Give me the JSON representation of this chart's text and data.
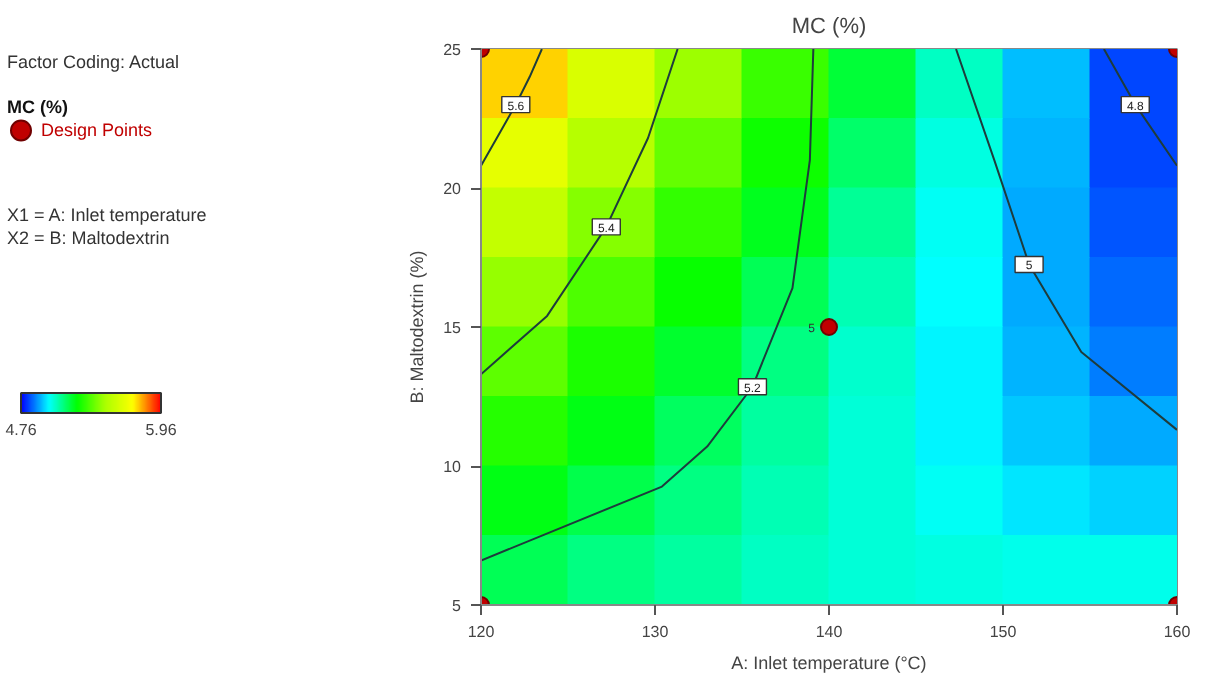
{
  "chart_data": {
    "type": "heatmap",
    "title": "MC (%)",
    "xlabel": "A: Inlet temperature (°C)",
    "ylabel": "B: Maltodextrin (%)",
    "legend_title": "MC (%)",
    "xlim": [
      120,
      160
    ],
    "ylim": [
      5,
      25
    ],
    "xticks": [
      120,
      130,
      140,
      150,
      160
    ],
    "yticks": [
      5,
      10,
      15,
      20,
      25
    ],
    "clim": [
      4.76,
      5.96
    ],
    "cticks": [
      4.76,
      5.96
    ],
    "colors": [
      "#0000ff",
      "#00ffff",
      "#00ff00",
      "#aaff00",
      "#ffff00",
      "#ff0000"
    ],
    "cells": [
      [
        5.76,
        5.61,
        5.46,
        5.32,
        5.19,
        5.06,
        4.94,
        4.83
      ],
      [
        5.65,
        5.51,
        5.38,
        5.26,
        5.14,
        5.03,
        4.93,
        4.83
      ],
      [
        5.55,
        5.43,
        5.31,
        5.21,
        5.1,
        5.01,
        4.92,
        4.84
      ],
      [
        5.45,
        5.35,
        5.25,
        5.16,
        5.07,
        5.0,
        4.92,
        4.86
      ],
      [
        5.37,
        5.28,
        5.2,
        5.12,
        5.05,
        4.99,
        4.93,
        4.88
      ],
      [
        5.29,
        5.22,
        5.15,
        5.09,
        5.04,
        4.99,
        4.95,
        4.92
      ],
      [
        5.22,
        5.17,
        5.12,
        5.07,
        5.04,
        5.01,
        4.98,
        4.96
      ],
      [
        5.16,
        5.12,
        5.09,
        5.06,
        5.04,
        5.03,
        5.02,
        5.02
      ]
    ],
    "series": [
      {
        "type": "line",
        "name": "5.6",
        "color": "#1e3c3c",
        "x": [
          123.5,
          122.8,
          122.0,
          121.0,
          120.0
        ],
        "values": [
          25,
          24,
          23,
          21.9,
          20.8
        ]
      },
      {
        "type": "line",
        "name": "5.4",
        "color": "#1e3c3c",
        "x": [
          131.3,
          129.6,
          127.2,
          123.8,
          120.0
        ],
        "values": [
          25,
          21.8,
          18.6,
          15.4,
          13.3
        ]
      },
      {
        "type": "line",
        "name": "5.2",
        "color": "#1e3c3c",
        "x": [
          139.1,
          138.9,
          137.9,
          135.6,
          133.0,
          130.4,
          120.0
        ],
        "values": [
          25,
          21,
          16.4,
          12.85,
          10.7,
          9.26,
          6.6
        ]
      },
      {
        "type": "line",
        "name": "5",
        "color": "#1e3c3c",
        "x": [
          147.3,
          149.5,
          151.5,
          154.5,
          160.0
        ],
        "values": [
          25,
          21,
          17.25,
          14.1,
          11.3
        ]
      },
      {
        "type": "line",
        "name": "4.8",
        "color": "#1e3c3c",
        "x": [
          155.8,
          157.6,
          160.0
        ],
        "values": [
          25,
          23,
          20.8
        ]
      },
      {
        "type": "scatter",
        "name": "Design Points",
        "color": "#c00000",
        "marker": "circle",
        "x": [
          120,
          120,
          160,
          160,
          140
        ],
        "values": [
          5,
          25,
          5,
          25,
          15
        ]
      }
    ],
    "legend": "top left",
    "annotations": [
      "Factor Coding: Actual",
      "X1 = A: Inlet temperature",
      "X2 = B: Maltodextrin",
      {
        "text": "5",
        "x": 140,
        "y": 15
      }
    ]
  }
}
